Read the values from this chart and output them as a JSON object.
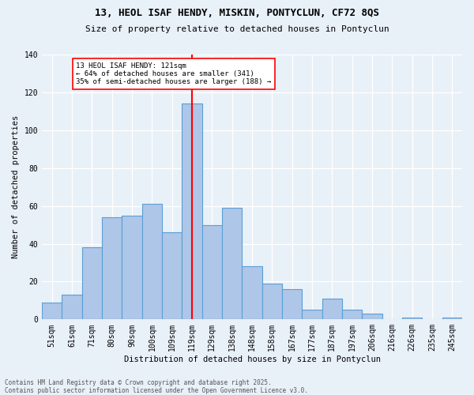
{
  "title1": "13, HEOL ISAF HENDY, MISKIN, PONTYCLUN, CF72 8QS",
  "title2": "Size of property relative to detached houses in Pontyclun",
  "xlabel": "Distribution of detached houses by size in Pontyclun",
  "ylabel": "Number of detached properties",
  "categories": [
    "51sqm",
    "61sqm",
    "71sqm",
    "80sqm",
    "90sqm",
    "100sqm",
    "109sqm",
    "119sqm",
    "129sqm",
    "138sqm",
    "148sqm",
    "158sqm",
    "167sqm",
    "177sqm",
    "187sqm",
    "197sqm",
    "206sqm",
    "216sqm",
    "226sqm",
    "235sqm",
    "245sqm"
  ],
  "values": [
    9,
    13,
    38,
    54,
    55,
    61,
    46,
    114,
    50,
    59,
    28,
    19,
    16,
    5,
    11,
    5,
    3,
    0,
    1,
    0,
    1
  ],
  "bar_color": "#aec6e8",
  "bar_edge_color": "#5a9fd4",
  "bg_color": "#e8f0f8",
  "grid_color": "#ffffff",
  "vline_x": 7.0,
  "vline_color": "red",
  "annotation_text": "13 HEOL ISAF HENDY: 121sqm\n← 64% of detached houses are smaller (341)\n35% of semi-detached houses are larger (188) →",
  "annotation_box_color": "white",
  "annotation_box_edge": "red",
  "footer1": "Contains HM Land Registry data © Crown copyright and database right 2025.",
  "footer2": "Contains public sector information licensed under the Open Government Licence v3.0.",
  "ylim": [
    0,
    140
  ],
  "yticks": [
    0,
    20,
    40,
    60,
    80,
    100,
    120,
    140
  ],
  "title1_fontsize": 9,
  "title2_fontsize": 8,
  "ylabel_fontsize": 7.5,
  "xlabel_fontsize": 7.5,
  "tick_fontsize": 7,
  "annot_fontsize": 6.5,
  "footer_fontsize": 5.5
}
